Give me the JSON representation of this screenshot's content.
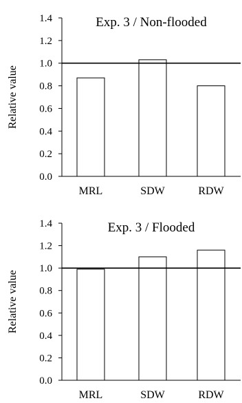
{
  "chart_data": [
    {
      "type": "bar",
      "title": "Exp. 3 / Non-flooded",
      "xlabel": "",
      "ylabel": "Relative value",
      "categories": [
        "MRL",
        "SDW",
        "RDW"
      ],
      "values": [
        0.87,
        1.03,
        0.8
      ],
      "ylim": [
        0.0,
        1.4
      ],
      "yticks": [
        "0.0",
        "0.2",
        "0.4",
        "0.6",
        "0.8",
        "1.0",
        "1.2",
        "1.4"
      ],
      "reference_line": 1.0,
      "grid": false,
      "legend": "none"
    },
    {
      "type": "bar",
      "title": "Exp. 3 / Flooded",
      "xlabel": "",
      "ylabel": "Relative value",
      "categories": [
        "MRL",
        "SDW",
        "RDW"
      ],
      "values": [
        0.99,
        1.1,
        1.16
      ],
      "ylim": [
        0.0,
        1.4
      ],
      "yticks": [
        "0.0",
        "0.2",
        "0.4",
        "0.6",
        "0.8",
        "1.0",
        "1.2",
        "1.4"
      ],
      "reference_line": 1.0,
      "grid": false,
      "legend": "none"
    }
  ]
}
